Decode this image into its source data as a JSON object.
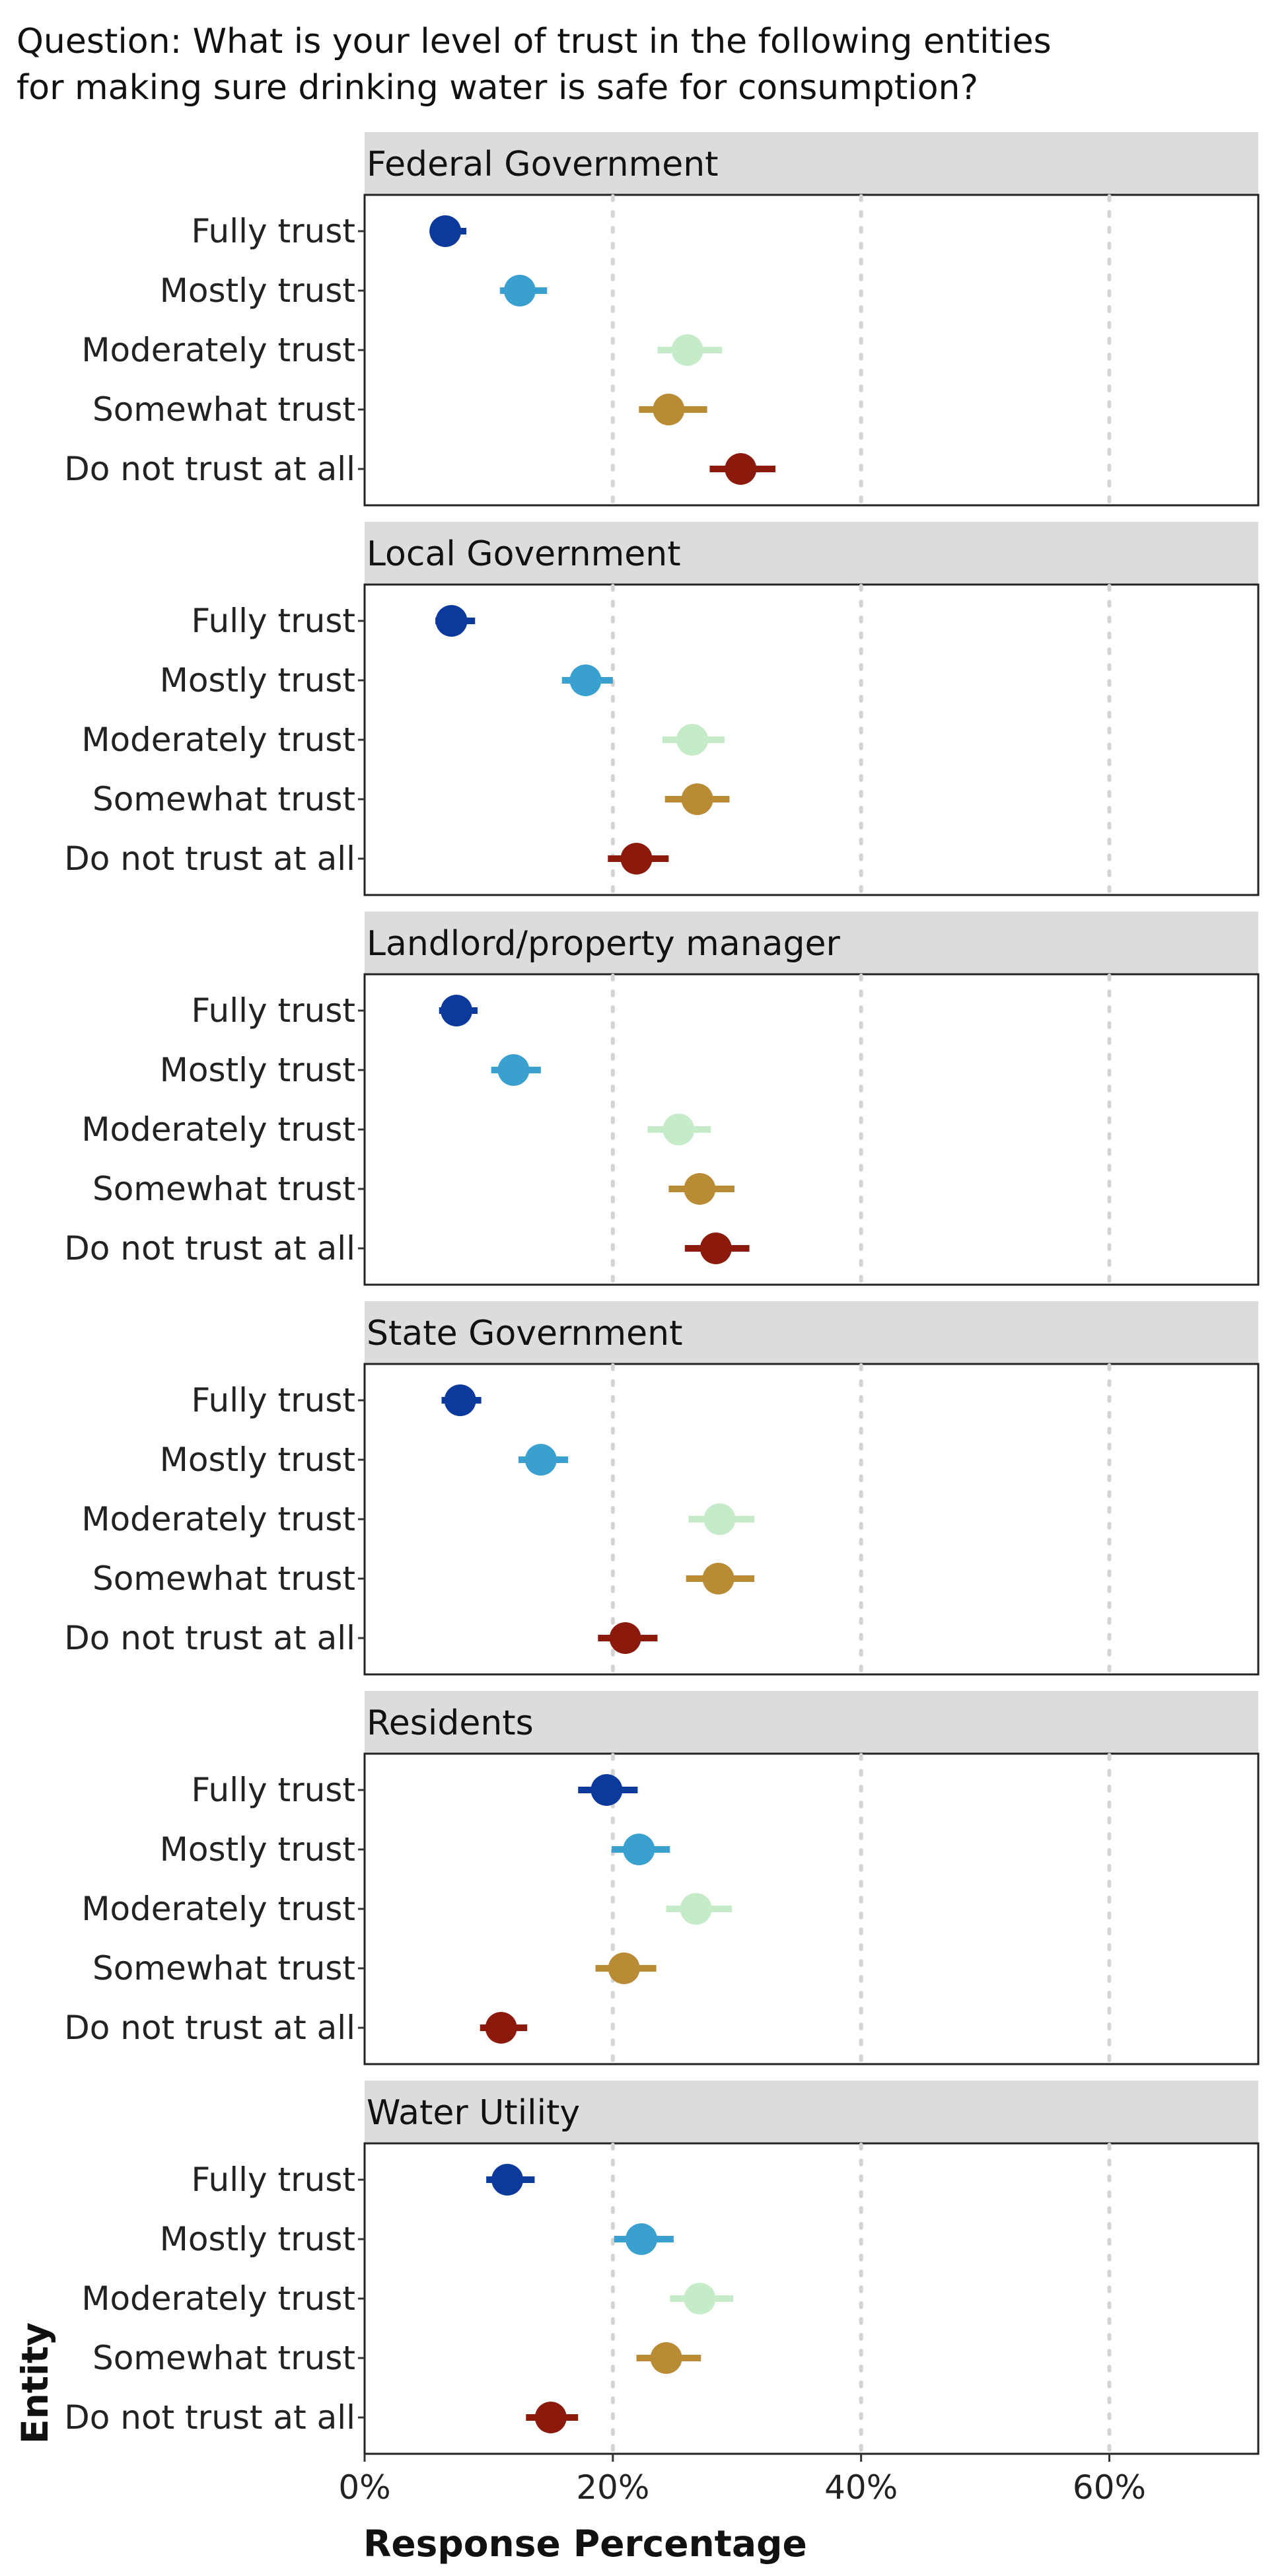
{
  "title": {
    "line1": "Question: What is your level of trust in the following entities",
    "line2": "for making sure drinking water is safe for consumption?"
  },
  "chart_data": {
    "type": "scatter",
    "subtype": "dot-with-error-bars, faceted",
    "xlabel": "Response Percentage",
    "ylabel": "Entity",
    "xlim": [
      0,
      72
    ],
    "xticks": [
      0,
      20,
      40,
      60
    ],
    "xtick_labels": [
      "0%",
      "20%",
      "40%",
      "60%"
    ],
    "vertical_gridlines": "dotted at 20%, 40%, 60%",
    "categories": [
      "Fully trust",
      "Mostly trust",
      "Moderately trust",
      "Somewhat trust",
      "Do not trust at all"
    ],
    "colors": {
      "Fully trust": "#0b3a9c",
      "Mostly trust": "#3aa0d0",
      "Moderately trust": "#c5ebc8",
      "Somewhat trust": "#b98b35",
      "Do not trust at all": "#8b1a0c"
    },
    "facets": [
      {
        "name": "Federal Government",
        "values": [
          6.5,
          12.5,
          26.0,
          24.5,
          30.3
        ],
        "ci_low": [
          5.3,
          10.9,
          23.6,
          22.1,
          27.8
        ],
        "ci_high": [
          8.2,
          14.7,
          28.8,
          27.6,
          33.1
        ]
      },
      {
        "name": "Local Government",
        "values": [
          7.0,
          17.8,
          26.4,
          26.8,
          21.9
        ],
        "ci_low": [
          5.7,
          15.9,
          24.0,
          24.2,
          19.6
        ],
        "ci_high": [
          8.9,
          20.0,
          29.0,
          29.4,
          24.5
        ]
      },
      {
        "name": "Landlord/property manager",
        "values": [
          7.4,
          12.0,
          25.3,
          27.0,
          28.3
        ],
        "ci_low": [
          6.0,
          10.2,
          22.8,
          24.5,
          25.8
        ],
        "ci_high": [
          9.1,
          14.2,
          27.9,
          29.8,
          31.0
        ]
      },
      {
        "name": "State Government",
        "values": [
          7.7,
          14.2,
          28.6,
          28.5,
          21.0
        ],
        "ci_low": [
          6.2,
          12.4,
          26.1,
          25.9,
          18.8
        ],
        "ci_high": [
          9.4,
          16.4,
          31.4,
          31.4,
          23.6
        ]
      },
      {
        "name": "Residents",
        "values": [
          19.5,
          22.1,
          26.7,
          20.9,
          11.0
        ],
        "ci_low": [
          17.2,
          19.9,
          24.3,
          18.6,
          9.3
        ],
        "ci_high": [
          22.0,
          24.6,
          29.6,
          23.5,
          13.1
        ]
      },
      {
        "name": "Water Utility",
        "values": [
          11.5,
          22.3,
          27.0,
          24.3,
          15.0
        ],
        "ci_low": [
          9.8,
          20.1,
          24.6,
          21.9,
          13.0
        ],
        "ci_high": [
          13.7,
          24.9,
          29.7,
          27.1,
          17.2
        ]
      }
    ]
  }
}
